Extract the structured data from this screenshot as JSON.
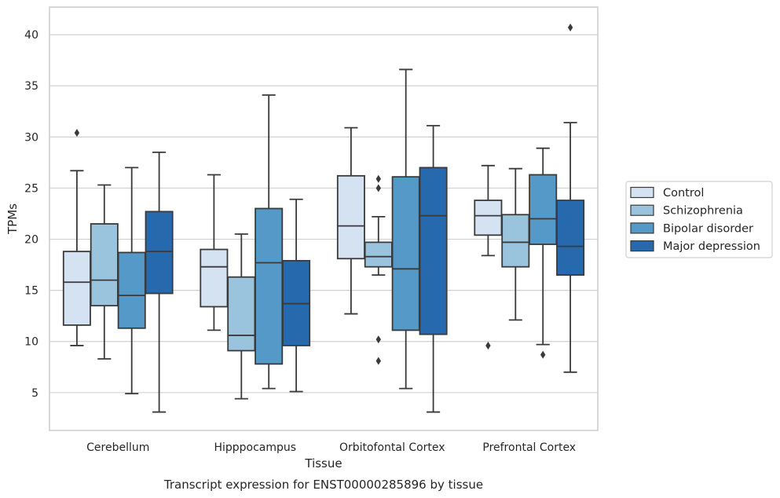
{
  "chart_data": {
    "type": "box",
    "title": "",
    "caption": "Transcript expression for ENST00000285896 by tissue",
    "xlabel": "Tissue",
    "ylabel": "TPMs",
    "ylim": [
      1.3,
      42.7
    ],
    "yticks": [
      5,
      10,
      15,
      20,
      25,
      30,
      35,
      40
    ],
    "grid": "horizontal",
    "legend_position": "right",
    "categories": [
      "Cerebellum",
      "Hipppocampus",
      "Orbitofontal Cortex",
      "Prefrontal Cortex"
    ],
    "series": [
      {
        "name": "Control",
        "color": "#d4e2f2",
        "boxes": [
          {
            "whislo": 9.6,
            "q1": 11.6,
            "med": 15.8,
            "q3": 18.8,
            "whishi": 26.7,
            "fliers": [
              30.4
            ]
          },
          {
            "whislo": 11.1,
            "q1": 13.4,
            "med": 17.3,
            "q3": 19.0,
            "whishi": 26.3,
            "fliers": []
          },
          {
            "whislo": 12.7,
            "q1": 18.1,
            "med": 21.3,
            "q3": 26.2,
            "whishi": 30.9,
            "fliers": []
          },
          {
            "whislo": 18.4,
            "q1": 20.4,
            "med": 22.3,
            "q3": 23.8,
            "whishi": 27.2,
            "fliers": [
              9.6
            ]
          }
        ]
      },
      {
        "name": "Schizophrenia",
        "color": "#9ac4de",
        "boxes": [
          {
            "whislo": 8.3,
            "q1": 13.5,
            "med": 16.0,
            "q3": 21.5,
            "whishi": 25.3,
            "fliers": []
          },
          {
            "whislo": 4.4,
            "q1": 9.1,
            "med": 10.6,
            "q3": 16.3,
            "whishi": 20.5,
            "fliers": []
          },
          {
            "whislo": 16.5,
            "q1": 17.3,
            "med": 18.3,
            "q3": 19.7,
            "whishi": 22.2,
            "fliers": [
              25.9,
              25.0,
              10.2,
              8.1
            ]
          },
          {
            "whislo": 12.1,
            "q1": 17.3,
            "med": 19.7,
            "q3": 22.4,
            "whishi": 26.9,
            "fliers": []
          }
        ]
      },
      {
        "name": "Bipolar disorder",
        "color": "#5499c8",
        "boxes": [
          {
            "whislo": 4.9,
            "q1": 11.3,
            "med": 14.5,
            "q3": 18.7,
            "whishi": 27.0,
            "fliers": []
          },
          {
            "whislo": 5.4,
            "q1": 7.8,
            "med": 17.7,
            "q3": 23.0,
            "whishi": 34.1,
            "fliers": []
          },
          {
            "whislo": 5.4,
            "q1": 11.1,
            "med": 17.1,
            "q3": 26.1,
            "whishi": 36.6,
            "fliers": []
          },
          {
            "whislo": 9.7,
            "q1": 19.5,
            "med": 22.0,
            "q3": 26.3,
            "whishi": 28.9,
            "fliers": [
              8.7
            ]
          }
        ]
      },
      {
        "name": "Major depression",
        "color": "#2769ad",
        "boxes": [
          {
            "whislo": 3.1,
            "q1": 14.7,
            "med": 18.8,
            "q3": 22.7,
            "whishi": 28.5,
            "fliers": []
          },
          {
            "whislo": 5.1,
            "q1": 9.6,
            "med": 13.7,
            "q3": 17.9,
            "whishi": 23.9,
            "fliers": []
          },
          {
            "whislo": 3.1,
            "q1": 10.7,
            "med": 22.3,
            "q3": 27.0,
            "whishi": 31.1,
            "fliers": []
          },
          {
            "whislo": 7.0,
            "q1": 16.5,
            "med": 19.3,
            "q3": 23.8,
            "whishi": 31.4,
            "fliers": [
              40.7
            ]
          }
        ]
      }
    ]
  }
}
